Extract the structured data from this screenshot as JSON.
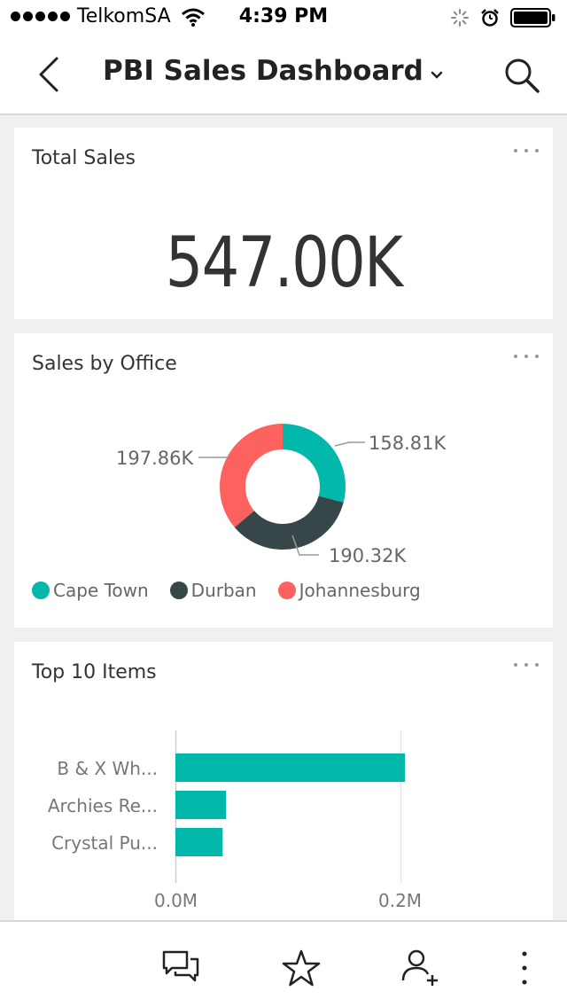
{
  "status_bar": {
    "carrier": "TelkomSA",
    "time": "4:39 PM"
  },
  "header": {
    "title": "PBI Sales Dashboard"
  },
  "cards": {
    "total_sales": {
      "title": "Total Sales",
      "value": "547.00K"
    },
    "sales_by_office": {
      "title": "Sales by Office",
      "labels": {
        "cape_town": "158.81K",
        "durban": "190.32K",
        "johannesburg": "197.86K"
      },
      "legend": [
        "Cape Town",
        "Durban",
        "Johannesburg"
      ]
    },
    "top_items": {
      "title": "Top 10 Items",
      "items": [
        "B & X Wh...",
        "Archies Re...",
        "Crystal Pu..."
      ],
      "ticks": [
        "0.0M",
        "0.2M"
      ]
    }
  },
  "colors": {
    "teal": "#01b8aa",
    "dark": "#374649",
    "coral": "#fd625e"
  },
  "chart_data": [
    {
      "type": "pie",
      "title": "Sales by Office",
      "categories": [
        "Cape Town",
        "Durban",
        "Johannesburg"
      ],
      "values": [
        158.81,
        190.32,
        197.86
      ],
      "unit": "K",
      "colors": [
        "#01b8aa",
        "#374649",
        "#fd625e"
      ],
      "legend": "bottom"
    },
    {
      "type": "bar",
      "orientation": "horizontal",
      "title": "Top 10 Items",
      "categories": [
        "B & X Wh...",
        "Archies Re...",
        "Crystal Pu..."
      ],
      "values": [
        0.204,
        0.045,
        0.042
      ],
      "xlim": [
        0,
        0.2
      ],
      "xticks": [
        "0.0M",
        "0.2M"
      ],
      "grid": true,
      "color": "#01b8aa"
    }
  ],
  "icons": {
    "back": "chevron-left-icon",
    "search": "search-icon",
    "comments": "comments-icon",
    "favorite": "star-icon",
    "share": "add-user-icon",
    "more": "more-vertical-icon"
  }
}
